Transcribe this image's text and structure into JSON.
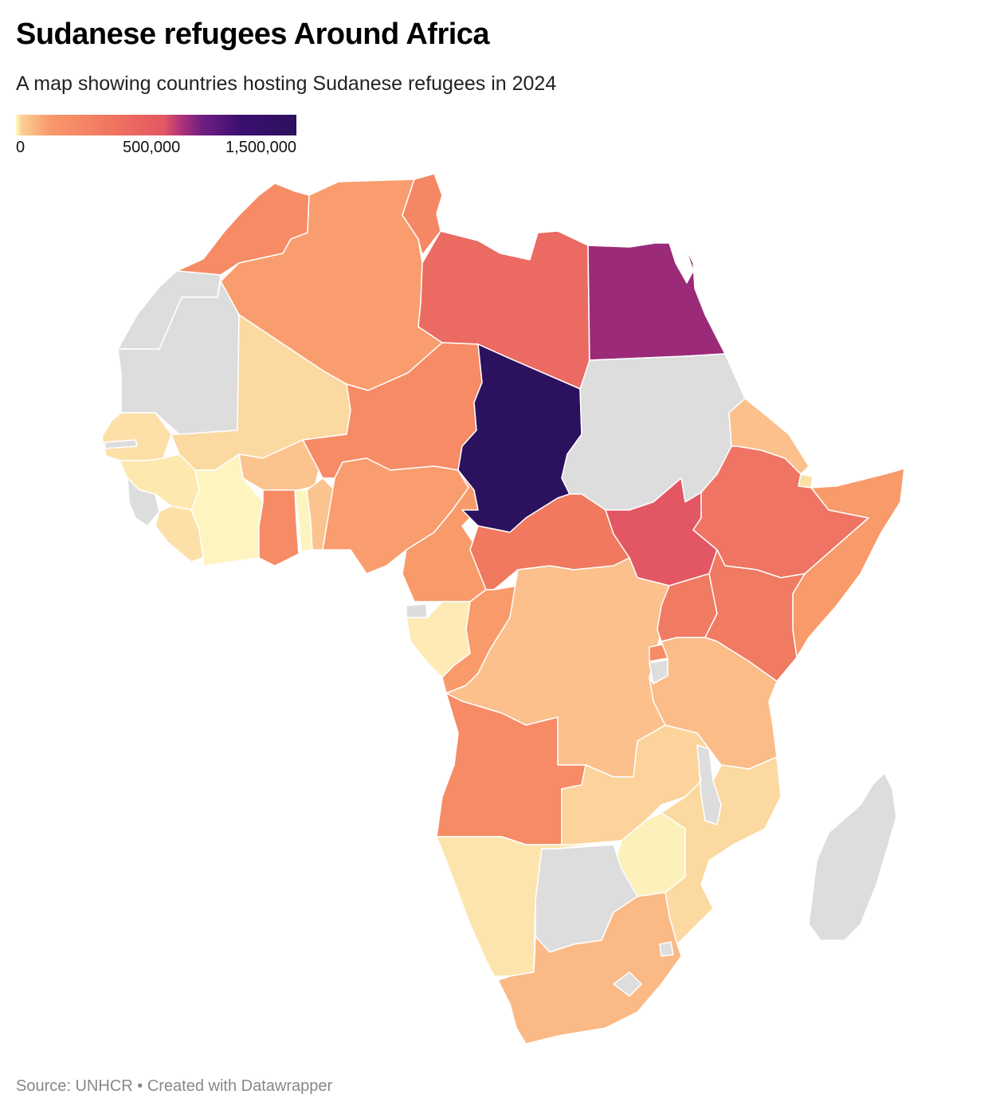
{
  "header": {
    "title": "Sudanese refugees Around Africa",
    "subtitle": "A map showing countries hosting Sudanese refugees in 2024"
  },
  "legend": {
    "labels": [
      "0",
      "500,000",
      "1,500,000"
    ],
    "colors": [
      "#fcfdbf",
      "#fbcf95",
      "#f99a6a",
      "#f0735f",
      "#e25763",
      "#b73779",
      "#721f81",
      "#2c115f"
    ],
    "no_data_color": "#dddddd"
  },
  "footer": {
    "source": "Source: UNHCR • Created with Datawrapper"
  },
  "colors": {
    "Egypt": "#9b2a79",
    "Chad": "#2c115f",
    "South Sudan": "#e25763",
    "Libya": "#eb6a62",
    "Ethiopia": "#ef7463",
    "Uganda": "#f07a62",
    "Kenya": "#f07a62",
    "Central African Republic": "#f0795f",
    "Niger": "#f68b66",
    "Morocco": "#f68b66",
    "Angola": "#f68b66",
    "Tunisia": "#f58764",
    "Algeria": "#f99d6f",
    "Nigeria": "#f99d6f",
    "Cameroon": "#f99a6a",
    "Somalia": "#f99a6a",
    "Ghana": "#f68b66",
    "Congo": "#f99a6a",
    "Burkina Faso": "#fbc38e",
    "DR Congo": "#fbc08c",
    "Tanzania": "#fbbc88",
    "Eritrea": "#fbc08c",
    "South Africa": "#fbb985",
    "Mali": "#fcd9a0",
    "Zambia": "#fcd39a",
    "Mozambique": "#fcd9a0",
    "Namibia": "#fce4ac",
    "Zimbabwe": "#fcf0bb",
    "Cote d'Ivoire": "#fdf4c0",
    "Gabon": "#fdeab5",
    "Senegal": "#fce0a8",
    "Guinea": "#fde8b0",
    "Liberia": "#fde0a7",
    "Benin": "#fbc48e",
    "Togo": "#fdf4c0",
    "Rwanda": "#f68b66",
    "Djibouti": "#fde0a7",
    "Sudan": "#dddddd",
    "Western Sahara": "#dddddd",
    "Mauritania": "#dddddd",
    "Sierra Leone": "#dddddd",
    "Botswana": "#dddddd",
    "Madagascar": "#dddddd",
    "Malawi": "#dddddd",
    "Burundi": "#dddddd",
    "Lesotho": "#dddddd",
    "Eswatini": "#dddddd",
    "Equatorial Guinea": "#dddddd",
    "Gambia": "#dddddd"
  }
}
